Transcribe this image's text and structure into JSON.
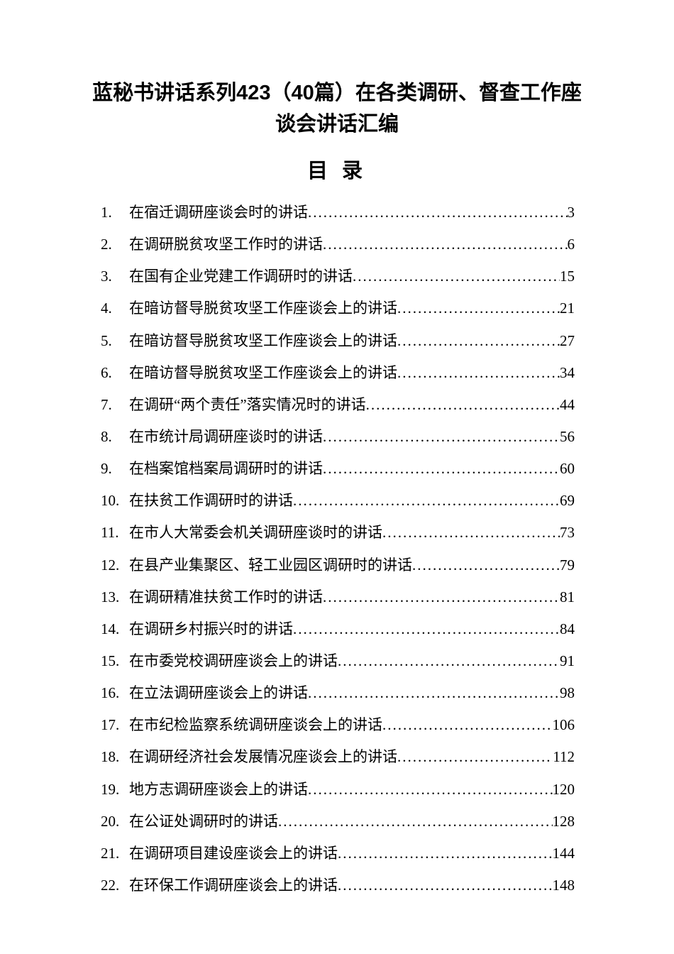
{
  "document": {
    "title": "蓝秘书讲话系列423（40篇）在各类调研、督查工作座谈会讲话汇编",
    "toc_heading": "目 录",
    "background_color": "#ffffff",
    "text_color": "#000000",
    "title_fontsize": 29,
    "toc_heading_fontsize": 29,
    "item_fontsize": 21,
    "line_height": 2.15,
    "title_font": "SimHei",
    "body_font": "SimSun",
    "number_font": "Times New Roman",
    "entries": [
      {
        "num": "1.",
        "text": "在宿迁调研座谈会时的讲话",
        "page": "3"
      },
      {
        "num": "2.",
        "text": "在调研脱贫攻坚工作时的讲话",
        "page": "6"
      },
      {
        "num": "3.",
        "text": "在国有企业党建工作调研时的讲话",
        "page": "15"
      },
      {
        "num": "4.",
        "text": "在暗访督导脱贫攻坚工作座谈会上的讲话",
        "page": "21"
      },
      {
        "num": "5.",
        "text": "在暗访督导脱贫攻坚工作座谈会上的讲话",
        "page": "27"
      },
      {
        "num": "6.",
        "text": "在暗访督导脱贫攻坚工作座谈会上的讲话",
        "page": "34"
      },
      {
        "num": "7.",
        "text": "在调研“两个责任”落实情况时的讲话",
        "page": "44"
      },
      {
        "num": "8.",
        "text": "在市统计局调研座谈时的讲话",
        "page": "56"
      },
      {
        "num": "9.",
        "text": "在档案馆档案局调研时的讲话",
        "page": "60"
      },
      {
        "num": "10.",
        "text": "在扶贫工作调研时的讲话",
        "page": "69"
      },
      {
        "num": "11.",
        "text": "在市人大常委会机关调研座谈时的讲话",
        "page": "73"
      },
      {
        "num": "12.",
        "text": "在县产业集聚区、轻工业园区调研时的讲话",
        "page": "79"
      },
      {
        "num": "13.",
        "text": "在调研精准扶贫工作时的讲话",
        "page": "81"
      },
      {
        "num": "14.",
        "text": "在调研乡村振兴时的讲话",
        "page": "84"
      },
      {
        "num": "15.",
        "text": "在市委党校调研座谈会上的讲话",
        "page": "91"
      },
      {
        "num": "16.",
        "text": "在立法调研座谈会上的讲话",
        "page": "98"
      },
      {
        "num": "17.",
        "text": "在市纪检监察系统调研座谈会上的讲话",
        "page": "106"
      },
      {
        "num": "18.",
        "text": "在调研经济社会发展情况座谈会上的讲话",
        "page": "112"
      },
      {
        "num": "19.",
        "text": "地方志调研座谈会上的讲话",
        "page": "120"
      },
      {
        "num": "20.",
        "text": "在公证处调研时的讲话",
        "page": "128"
      },
      {
        "num": "21.",
        "text": "在调研项目建设座谈会上的讲话",
        "page": "144"
      },
      {
        "num": "22.",
        "text": "在环保工作调研座谈会上的讲话",
        "page": "148"
      }
    ]
  }
}
